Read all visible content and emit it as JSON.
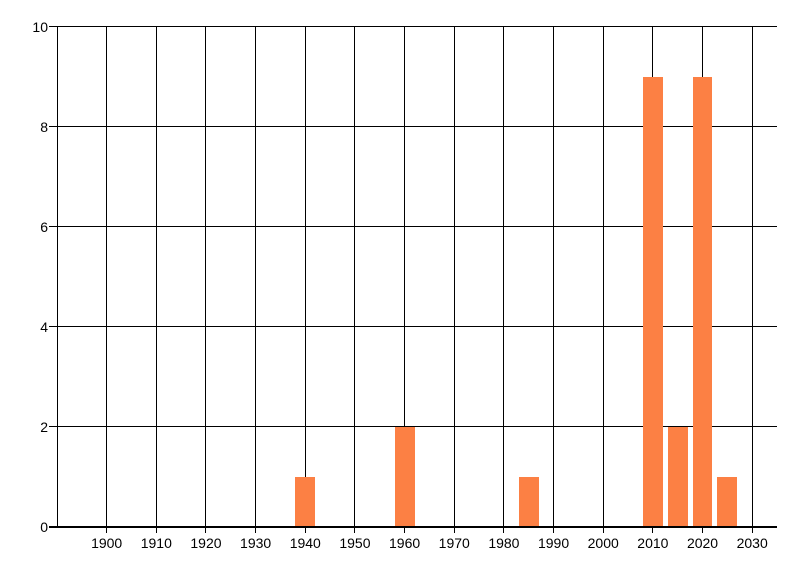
{
  "chart_data": {
    "type": "bar",
    "title": "",
    "xlabel": "",
    "ylabel": "",
    "x": [
      1940,
      1960,
      1985,
      2010,
      2015,
      2020,
      2025
    ],
    "values": [
      1,
      2,
      1,
      9,
      2,
      9,
      1
    ],
    "bar_width_years": 4,
    "xticks": [
      1900,
      1910,
      1920,
      1930,
      1940,
      1950,
      1960,
      1970,
      1980,
      1990,
      2000,
      2010,
      2020,
      2030
    ],
    "xtick_labels": [
      "1900",
      "1910",
      "1920",
      "1930",
      "1940",
      "1950",
      "1960",
      "1970",
      "1980",
      "1990",
      "2000",
      "2010",
      "2020",
      "2030"
    ],
    "yticks": [
      0,
      2,
      4,
      6,
      8,
      10
    ],
    "ytick_labels": [
      "0",
      "2",
      "4",
      "6",
      "8",
      "10"
    ],
    "xlim": [
      1890,
      2035
    ],
    "ylim": [
      0,
      10
    ],
    "grid": true,
    "legend": null,
    "colors": {
      "bar": "#fc8044",
      "grid": "#000000",
      "axis": "#000000",
      "label": "#000000",
      "background": "#ffffff"
    }
  }
}
